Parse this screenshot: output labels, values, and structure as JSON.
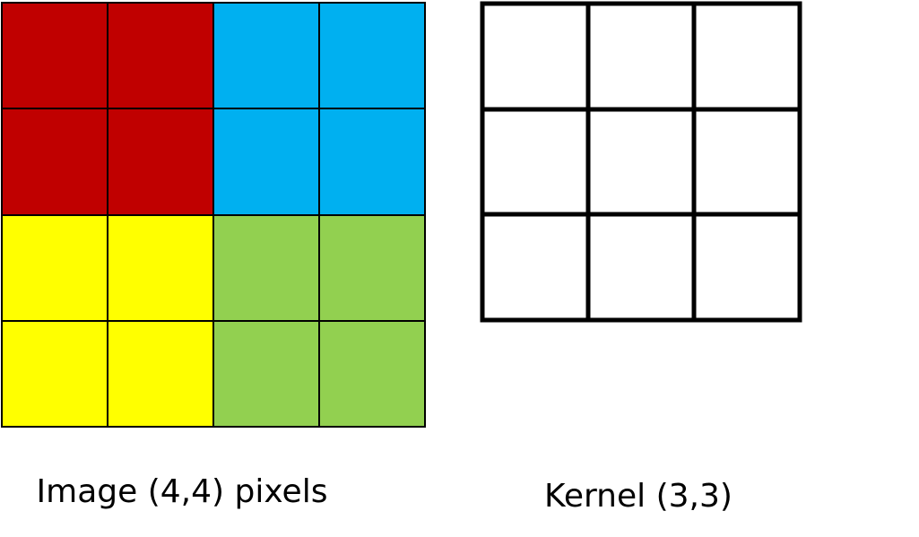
{
  "image_grid": {
    "caption": "Image (4,4) pixels"
  },
  "kernel_grid": {
    "caption": "Kernel (3,3)"
  }
}
